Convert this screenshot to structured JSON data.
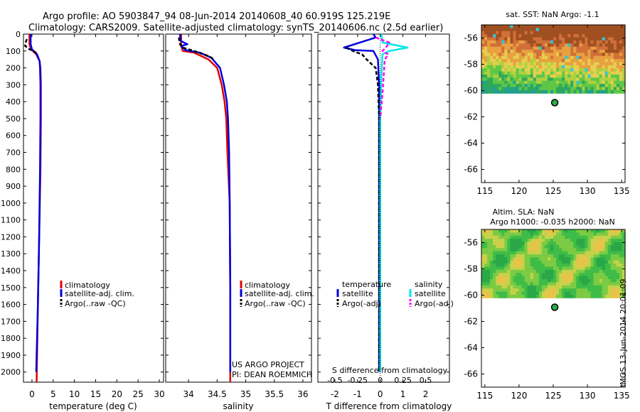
{
  "header": {
    "title_line1": "Argo profile: AO 5903847_94 08-Jun-2014 20140608_40 60.919S 125.219E",
    "title_line2": "Climatology: CARS2009. Satellite-adjusted climatology: synTS_20140606.nc (2.5d earlier)"
  },
  "side_stamp": "IMOS 13-Jun-2014 20:01:09",
  "colors": {
    "red": "#e00000",
    "blue": "#0000e0",
    "black": "#000000",
    "cyan": "#00e8e8",
    "magenta": "#ff00ff"
  },
  "depth_ticks": [
    "0",
    "100",
    "200",
    "300",
    "400",
    "500",
    "600",
    "700",
    "800",
    "900",
    "1000",
    "1100",
    "1200",
    "1300",
    "1400",
    "1500",
    "1600",
    "1700",
    "1800",
    "1900",
    "2000"
  ],
  "chart_data": [
    {
      "type": "line",
      "id": "temperature",
      "xlabel": "temperature (deg C)",
      "ylabel": "depth",
      "xlim": [
        -2,
        31
      ],
      "ylim": [
        2060,
        0
      ],
      "xticks": [
        0,
        5,
        10,
        15,
        20,
        25,
        30
      ],
      "legend": [
        "climatology",
        "satellite-adj. clim.",
        "Argo(..raw -QC)"
      ],
      "series": [
        {
          "name": "climatology",
          "color": "red",
          "points": [
            [
              -0.6,
              0
            ],
            [
              -0.6,
              60
            ],
            [
              -0.2,
              90
            ],
            [
              1.0,
              120
            ],
            [
              1.8,
              160
            ],
            [
              2.0,
              200
            ],
            [
              2.1,
              300
            ],
            [
              2.1,
              500
            ],
            [
              2.0,
              800
            ],
            [
              1.7,
              1200
            ],
            [
              1.4,
              1600
            ],
            [
              1.1,
              2060
            ]
          ]
        },
        {
          "name": "satellite-adj. clim.",
          "color": "blue",
          "points": [
            [
              -0.3,
              0
            ],
            [
              -0.3,
              60
            ],
            [
              0.0,
              90
            ],
            [
              1.2,
              120
            ],
            [
              1.8,
              160
            ],
            [
              1.9,
              200
            ],
            [
              2.0,
              300
            ],
            [
              2.0,
              500
            ],
            [
              1.9,
              800
            ],
            [
              1.7,
              1200
            ],
            [
              1.4,
              1600
            ],
            [
              1.0,
              2000
            ]
          ]
        },
        {
          "name": "Argo(..raw -QC)",
          "color": "black",
          "points": [
            [
              -1.2,
              30
            ],
            [
              -1.5,
              50
            ],
            [
              -1.6,
              70
            ],
            [
              -0.6,
              90
            ],
            [
              0.4,
              100
            ],
            [
              1.4,
              120
            ]
          ]
        }
      ]
    },
    {
      "type": "line",
      "id": "salinity",
      "xlabel": "salinity",
      "xlim": [
        33.6,
        36.15
      ],
      "ylim": [
        2060,
        0
      ],
      "xticks": [
        34,
        34.5,
        35,
        35.5,
        36
      ],
      "xticklabels": [
        "34",
        "34.5",
        "35",
        "35.5",
        "36"
      ],
      "legend": [
        "climatology",
        "satellite-adj. clim.",
        "Argo(..raw -QC)"
      ],
      "annotation": [
        "US ARGO PROJECT",
        "PI: DEAN ROEMMICH"
      ],
      "series": [
        {
          "name": "climatology",
          "color": "red",
          "points": [
            [
              33.87,
              0
            ],
            [
              33.87,
              70
            ],
            [
              33.9,
              100
            ],
            [
              34.1,
              110
            ],
            [
              34.35,
              150
            ],
            [
              34.5,
              200
            ],
            [
              34.58,
              300
            ],
            [
              34.63,
              400
            ],
            [
              34.66,
              500
            ],
            [
              34.68,
              700
            ],
            [
              34.72,
              1000
            ],
            [
              34.73,
              1500
            ],
            [
              34.73,
              2060
            ]
          ]
        },
        {
          "name": "satellite-adj. clim.",
          "color": "blue",
          "points": [
            [
              33.85,
              0
            ],
            [
              33.86,
              40
            ],
            [
              33.98,
              60
            ],
            [
              33.87,
              70
            ],
            [
              33.95,
              95
            ],
            [
              34.2,
              110
            ],
            [
              34.4,
              140
            ],
            [
              34.55,
              200
            ],
            [
              34.62,
              300
            ],
            [
              34.67,
              400
            ],
            [
              34.69,
              500
            ],
            [
              34.71,
              700
            ],
            [
              34.72,
              1000
            ],
            [
              34.73,
              1500
            ],
            [
              34.73,
              2000
            ]
          ]
        },
        {
          "name": "Argo(..raw -QC)",
          "color": "black",
          "points": [
            [
              33.83,
              20
            ],
            [
              33.85,
              60
            ],
            [
              33.9,
              80
            ],
            [
              34.1,
              100
            ],
            [
              34.35,
              130
            ],
            [
              34.45,
              150
            ]
          ]
        }
      ]
    },
    {
      "type": "line",
      "id": "difference",
      "xlabel": "T difference from climatology",
      "top_xlabel": "S difference from climatology",
      "xlim": [
        -2.75,
        3.05
      ],
      "ylim": [
        2060,
        0
      ],
      "xticks": [
        -2,
        -1,
        0,
        1,
        2
      ],
      "top_ticks": [
        "-0.5",
        "-0.25",
        "0",
        "0.25",
        "0.5"
      ],
      "legend_titles": [
        "temperature",
        "salinity"
      ],
      "legend": [
        "satellite",
        "Argo(-adj)",
        "satellite",
        "Argo(-adj)"
      ],
      "series": [
        {
          "name": "temperature satellite",
          "color": "blue",
          "points": [
            [
              -0.3,
              0
            ],
            [
              -0.2,
              20
            ],
            [
              -1.6,
              80
            ],
            [
              -1.1,
              95
            ],
            [
              -0.3,
              100
            ],
            [
              -0.1,
              150
            ],
            [
              -0.05,
              300
            ],
            [
              -0.05,
              1000
            ],
            [
              -0.05,
              2000
            ]
          ]
        },
        {
          "name": "temperature Argo(-adj)",
          "color": "black",
          "points": [
            [
              -1.5,
              80
            ],
            [
              -1.2,
              100
            ],
            [
              -0.8,
              120
            ],
            [
              -0.6,
              150
            ],
            [
              -0.2,
              200
            ],
            [
              -0.1,
              300
            ],
            [
              -0.05,
              500
            ],
            [
              -0.05,
              2000
            ]
          ]
        },
        {
          "name": "salinity satellite",
          "color": "cyan",
          "points": [
            [
              0.05,
              0
            ],
            [
              0.1,
              50
            ],
            [
              1.2,
              80
            ],
            [
              0.4,
              100
            ],
            [
              0.1,
              120
            ],
            [
              0.05,
              250
            ],
            [
              0.0,
              500
            ],
            [
              0.0,
              2000
            ]
          ]
        },
        {
          "name": "salinity Argo(-adj)",
          "color": "magenta",
          "points": [
            [
              -0.2,
              20
            ],
            [
              0.4,
              50
            ],
            [
              0.25,
              80
            ],
            [
              0.1,
              100
            ],
            [
              0.35,
              120
            ],
            [
              0.2,
              150
            ],
            [
              0.15,
              250
            ],
            [
              0.1,
              350
            ],
            [
              0.0,
              500
            ]
          ]
        }
      ]
    },
    {
      "type": "heatmap",
      "id": "sst-map",
      "title": "sat. SST: NaN Argo: -1.1",
      "xlim": [
        114.5,
        135.5
      ],
      "ylim": [
        -67,
        -55
      ],
      "xticks": [
        "115",
        "120",
        "125",
        "130",
        "135"
      ],
      "yticks": [
        "-56",
        "-58",
        "-60",
        "-62",
        "-64",
        "-66"
      ],
      "data_extent_lat": [
        -55,
        -60.2
      ],
      "argo_position": [
        125.219,
        -60.919
      ]
    },
    {
      "type": "heatmap",
      "id": "sla-map",
      "title_line1": "Altim. SLA: NaN",
      "title_line2": "Argo h1000: -0.035 h2000: NaN",
      "xlim": [
        114.5,
        135.5
      ],
      "ylim": [
        -67,
        -55
      ],
      "xticks": [
        "115",
        "120",
        "125",
        "130",
        "135"
      ],
      "yticks": [
        "-56",
        "-58",
        "-60",
        "-62",
        "-64",
        "-66"
      ],
      "data_extent_lat": [
        -55,
        -60.2
      ],
      "argo_position": [
        125.219,
        -60.919
      ]
    }
  ]
}
